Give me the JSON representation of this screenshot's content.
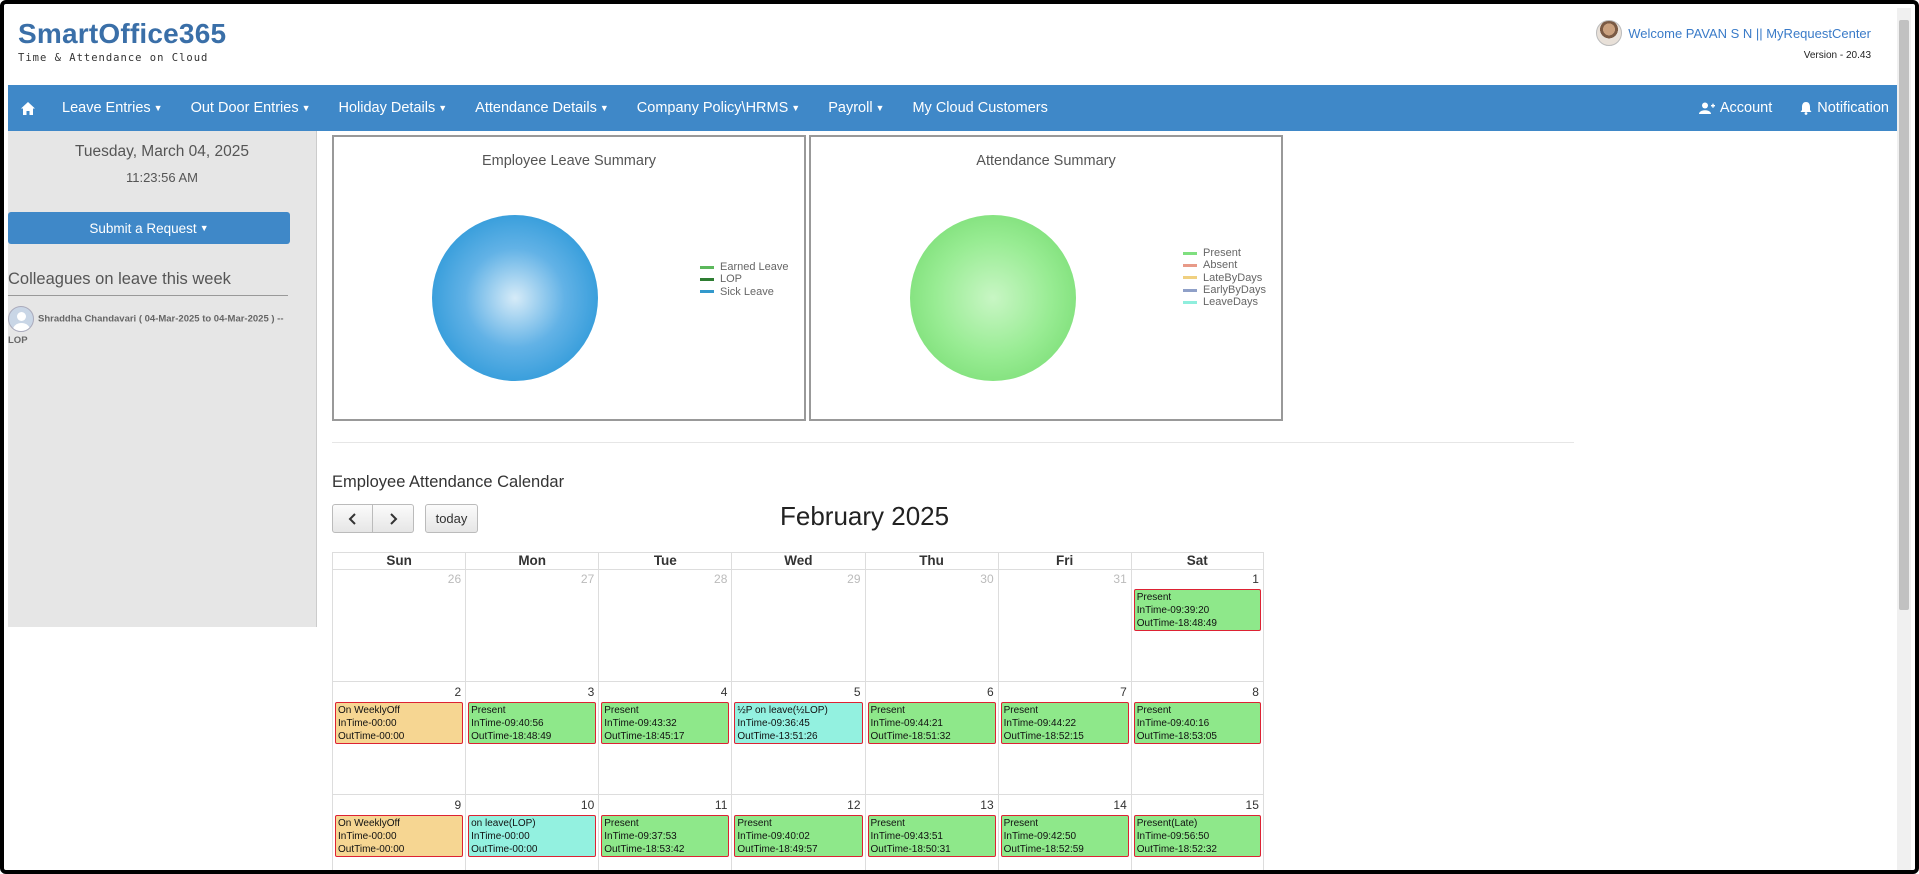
{
  "header": {
    "logo_main": "SmartOffice365",
    "logo_sub": "Time & Attendance on Cloud",
    "welcome": "Welcome PAVAN S N || MyRequestCenter",
    "version": "Version - 20.43"
  },
  "nav": {
    "items": [
      {
        "label": "Leave Entries"
      },
      {
        "label": "Out Door Entries"
      },
      {
        "label": "Holiday Details"
      },
      {
        "label": "Attendance Details"
      },
      {
        "label": "Company Policy\\HRMS"
      },
      {
        "label": "Payroll"
      },
      {
        "label": "My Cloud Customers"
      }
    ],
    "account": "Account",
    "notification": "Notification"
  },
  "sidebar": {
    "date": "Tuesday, March 04, 2025",
    "time": "11:23:56 AM",
    "submit_label": "Submit a Request",
    "colleagues_title": "Colleagues on leave this week",
    "colleague_entry": "Shraddha Chandavari ( 04-Mar-2025 to 04-Mar-2025 ) -- LOP"
  },
  "leave_chart": {
    "title": "Employee Leave Summary",
    "legend": [
      {
        "label": "Earned Leave",
        "color": "#5cb85c"
      },
      {
        "label": "LOP",
        "color": "#2e7d32"
      },
      {
        "label": "Sick Leave",
        "color": "#3399cc"
      }
    ],
    "pie_color": "#3a9fdc"
  },
  "attendance_chart": {
    "title": "Attendance Summary",
    "legend": [
      {
        "label": "Present",
        "color": "#7fdf7f"
      },
      {
        "label": "Absent",
        "color": "#e89a88"
      },
      {
        "label": "LateByDays",
        "color": "#f0d080"
      },
      {
        "label": "EarlyByDays",
        "color": "#8fa0c8"
      },
      {
        "label": "LeaveDays",
        "color": "#8feedd"
      }
    ],
    "pie_color": "#8ee88a"
  },
  "calendar": {
    "title": "Employee Attendance Calendar",
    "month": "February 2025",
    "today_label": "today",
    "days": [
      "Sun",
      "Mon",
      "Tue",
      "Wed",
      "Thu",
      "Fri",
      "Sat"
    ],
    "weeks": [
      [
        {
          "day": "26",
          "other": true
        },
        {
          "day": "27",
          "other": true
        },
        {
          "day": "28",
          "other": true
        },
        {
          "day": "29",
          "other": true
        },
        {
          "day": "30",
          "other": true
        },
        {
          "day": "31",
          "other": true
        },
        {
          "day": "1",
          "type": "present",
          "lines": [
            "Present",
            "InTime-09:39:20",
            "OutTime-18:48:49"
          ]
        }
      ],
      [
        {
          "day": "2",
          "type": "weeklyoff",
          "lines": [
            "On WeeklyOff",
            "InTime-00:00",
            "OutTime-00:00"
          ]
        },
        {
          "day": "3",
          "type": "present",
          "lines": [
            "Present",
            "InTime-09:40:56",
            "OutTime-18:48:49"
          ]
        },
        {
          "day": "4",
          "type": "present",
          "lines": [
            "Present",
            "InTime-09:43:32",
            "OutTime-18:45:17"
          ]
        },
        {
          "day": "5",
          "type": "leave",
          "lines": [
            "½P on leave(½LOP)",
            "InTime-09:36:45",
            "OutTime-13:51:26"
          ]
        },
        {
          "day": "6",
          "type": "present",
          "lines": [
            "Present",
            "InTime-09:44:21",
            "OutTime-18:51:32"
          ]
        },
        {
          "day": "7",
          "type": "present",
          "lines": [
            "Present",
            "InTime-09:44:22",
            "OutTime-18:52:15"
          ]
        },
        {
          "day": "8",
          "type": "present",
          "lines": [
            "Present",
            "InTime-09:40:16",
            "OutTime-18:53:05"
          ]
        }
      ],
      [
        {
          "day": "9",
          "type": "weeklyoff",
          "lines": [
            "On WeeklyOff",
            "InTime-00:00",
            "OutTime-00:00"
          ]
        },
        {
          "day": "10",
          "type": "leave",
          "lines": [
            "on leave(LOP)",
            "InTime-00:00",
            "OutTime-00:00"
          ]
        },
        {
          "day": "11",
          "type": "present",
          "lines": [
            "Present",
            "InTime-09:37:53",
            "OutTime-18:53:42"
          ]
        },
        {
          "day": "12",
          "type": "present",
          "lines": [
            "Present",
            "InTime-09:40:02",
            "OutTime-18:49:57"
          ]
        },
        {
          "day": "13",
          "type": "present",
          "lines": [
            "Present",
            "InTime-09:43:51",
            "OutTime-18:50:31"
          ]
        },
        {
          "day": "14",
          "type": "present",
          "lines": [
            "Present",
            "InTime-09:42:50",
            "OutTime-18:52:59"
          ]
        },
        {
          "day": "15",
          "type": "present",
          "lines": [
            "Present(Late)",
            "InTime-09:56:50",
            "OutTime-18:52:32"
          ]
        }
      ]
    ]
  }
}
